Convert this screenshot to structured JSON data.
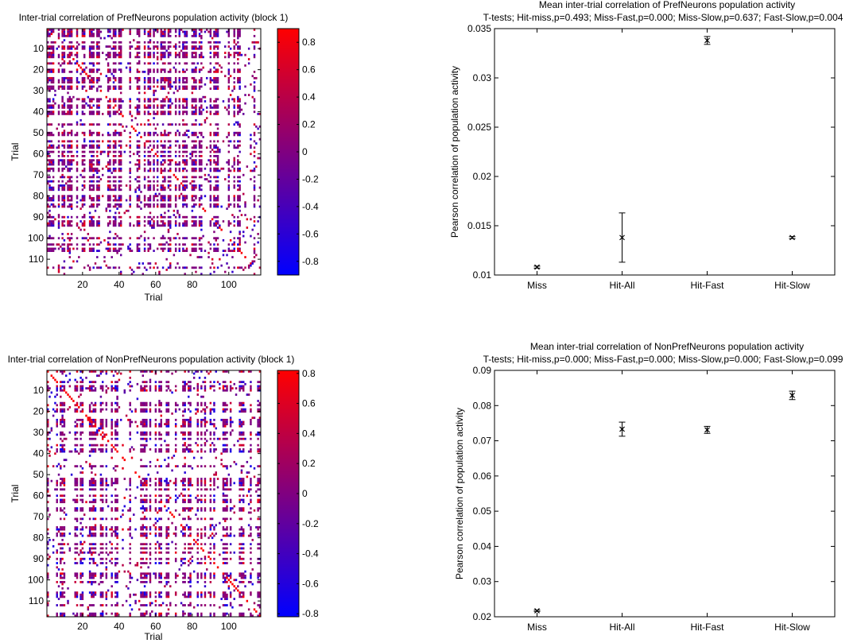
{
  "chart_data": [
    {
      "type": "heatmap",
      "title": "Inter-trial correlation of PrefNeurons population activity (block 1)",
      "xlabel": "Trial",
      "ylabel": "Trial",
      "xticks": [
        "20",
        "40",
        "60",
        "80",
        "100"
      ],
      "yticks": [
        "10",
        "20",
        "30",
        "40",
        "50",
        "60",
        "70",
        "80",
        "90",
        "100",
        "110"
      ],
      "n_trials": 117,
      "colorbar": {
        "ticks": [
          "0.8",
          "0.6",
          "0.4",
          "0.2",
          "0",
          "-0.2",
          "-0.4",
          "-0.6",
          "-0.8"
        ],
        "cmin": -0.9,
        "cmax": 0.9
      },
      "colors": {
        "low": "#0000ff",
        "mid": "#800080",
        "high": "#ff0000"
      },
      "seed": 11
    },
    {
      "type": "scatter",
      "title": "Mean inter-trial correlation of PrefNeurons population activity",
      "subtitle": "T-tests; Hit-miss,p=0.493; Miss-Fast,p=0.000; Miss-Slow,p=0.637; Fast-Slow,p=0.004",
      "xlabel": "",
      "ylabel": "Pearson correlation of population activity",
      "categories": [
        "Miss",
        "Hit-All",
        "Hit-Fast",
        "Hit-Slow"
      ],
      "values": [
        0.0108,
        0.0138,
        0.0338,
        0.0138
      ],
      "errors": [
        0.0001,
        0.0025,
        0.0004,
        0.0001
      ],
      "ylim": [
        0.01,
        0.035
      ],
      "yticks": [
        "0.01",
        "0.015",
        "0.02",
        "0.025",
        "0.03",
        "0.035"
      ]
    },
    {
      "type": "heatmap",
      "title": "Inter-trial correlation of NonPrefNeurons population activity (block 1)",
      "xlabel": "Trial",
      "ylabel": "Trial",
      "xticks": [
        "20",
        "40",
        "60",
        "80",
        "100"
      ],
      "yticks": [
        "10",
        "20",
        "30",
        "40",
        "50",
        "60",
        "70",
        "80",
        "90",
        "100",
        "110"
      ],
      "n_trials": 117,
      "colorbar": {
        "ticks": [
          "0.8",
          "0.6",
          "0.4",
          "0.2",
          "0",
          "-0.2",
          "-0.4",
          "-0.6",
          "-0.8"
        ],
        "cmin": -0.82,
        "cmax": 0.82
      },
      "colors": {
        "low": "#0000ff",
        "mid": "#800080",
        "high": "#ff0000"
      },
      "seed": 29
    },
    {
      "type": "scatter",
      "title": "Mean inter-trial correlation of NonPrefNeurons population activity",
      "subtitle": "T-tests; Hit-miss,p=0.000; Miss-Fast,p=0.000; Miss-Slow,p=0.000; Fast-Slow,p=0.099",
      "xlabel": "",
      "ylabel": "Pearson correlation of population activity",
      "categories": [
        "Miss",
        "Hit-All",
        "Hit-Fast",
        "Hit-Slow"
      ],
      "values": [
        0.0217,
        0.0733,
        0.0731,
        0.0829
      ],
      "errors": [
        0.0002,
        0.002,
        0.001,
        0.0012
      ],
      "ylim": [
        0.02,
        0.09
      ],
      "yticks": [
        "0.02",
        "0.03",
        "0.04",
        "0.05",
        "0.06",
        "0.07",
        "0.08",
        "0.09"
      ]
    }
  ]
}
